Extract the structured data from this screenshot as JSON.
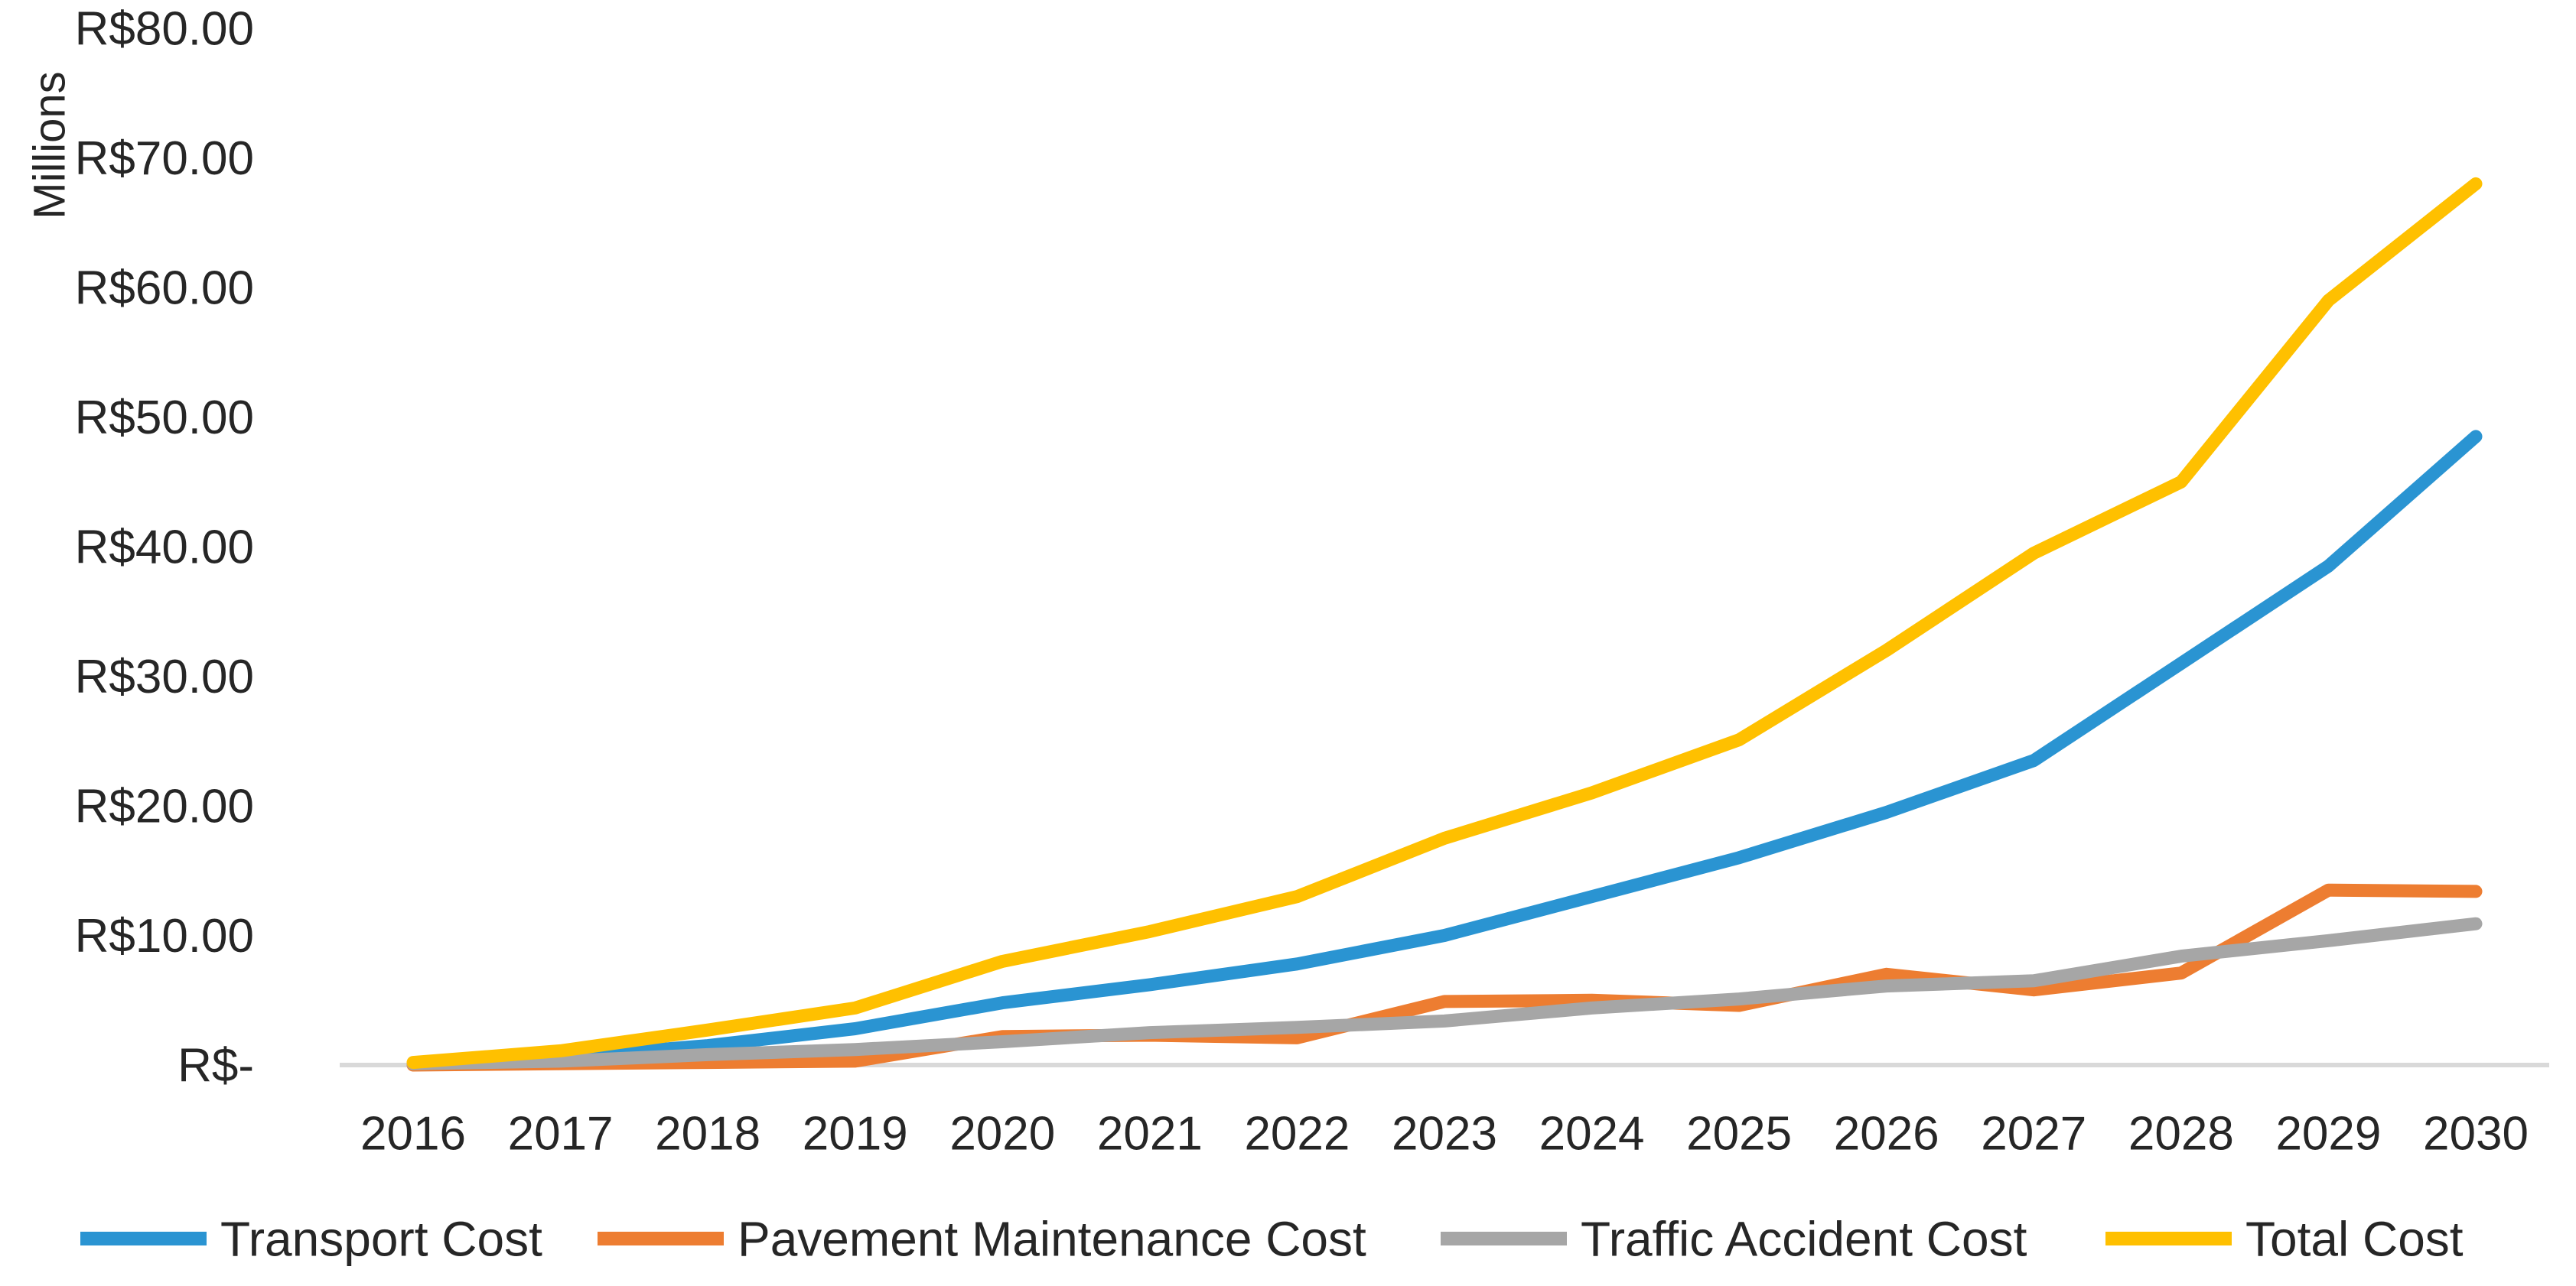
{
  "chart_data": {
    "type": "line",
    "title": "",
    "xlabel": "",
    "ylabel": "Millions",
    "ylim": [
      0,
      80
    ],
    "grid": false,
    "legend_position": "bottom",
    "currency_prefix": "R$",
    "categories": [
      "2016",
      "2017",
      "2018",
      "2019",
      "2020",
      "2021",
      "2022",
      "2023",
      "2024",
      "2025",
      "2026",
      "2027",
      "2028",
      "2029",
      "2030"
    ],
    "y_ticks": [
      {
        "value": 80,
        "label": "R$80.00"
      },
      {
        "value": 70,
        "label": "R$70.00"
      },
      {
        "value": 60,
        "label": "R$60.00"
      },
      {
        "value": 50,
        "label": "R$50.00"
      },
      {
        "value": 40,
        "label": "R$40.00"
      },
      {
        "value": 30,
        "label": "R$30.00"
      },
      {
        "value": 20,
        "label": "R$20.00"
      },
      {
        "value": 10,
        "label": "R$10.00"
      },
      {
        "value": 0,
        "label": "R$-"
      }
    ],
    "series": [
      {
        "name": "Transport Cost",
        "color": "#2A94D2",
        "values": [
          0.1,
          0.6,
          1.5,
          2.8,
          4.8,
          6.2,
          7.8,
          10.0,
          13.0,
          16.0,
          19.5,
          23.5,
          31.0,
          38.5,
          48.5
        ]
      },
      {
        "name": "Pavement Maintenance Cost",
        "color": "#ED7D31",
        "values": [
          0.0,
          0.1,
          0.2,
          0.3,
          2.2,
          2.3,
          2.1,
          4.9,
          5.0,
          4.6,
          7.0,
          5.8,
          7.1,
          13.5,
          13.4
        ]
      },
      {
        "name": "Traffic Accident Cost",
        "color": "#A6A6A6",
        "values": [
          0.1,
          0.3,
          0.8,
          1.2,
          1.8,
          2.5,
          2.9,
          3.4,
          4.4,
          5.1,
          6.1,
          6.5,
          8.4,
          9.6,
          10.9
        ]
      },
      {
        "name": "Total Cost",
        "color": "#FFC000",
        "values": [
          0.2,
          1.1,
          2.7,
          4.4,
          8.0,
          10.3,
          13.0,
          17.5,
          21.0,
          25.1,
          32.0,
          39.5,
          45.0,
          59.0,
          68.0
        ]
      }
    ],
    "axis_line_color": "#D9D9D9",
    "text_color": "#262626"
  }
}
